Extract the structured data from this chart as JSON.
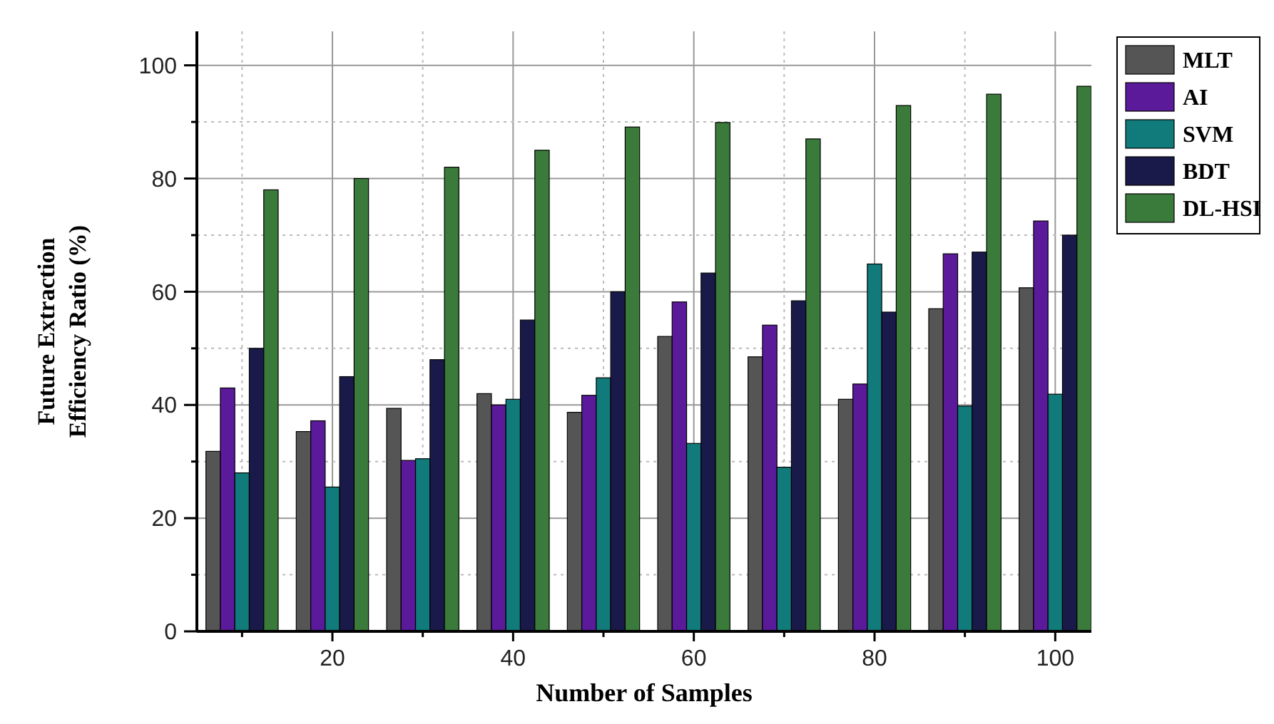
{
  "chart_data": {
    "type": "bar",
    "xlabel": "Number of Samples",
    "ylabel": "Future Extraction\nEfficiency Ratio (%)",
    "x": [
      10,
      20,
      30,
      40,
      50,
      60,
      70,
      80,
      90,
      100
    ],
    "series": [
      {
        "name": "MLT",
        "color": "#555555",
        "values": [
          31.8,
          35.3,
          39.4,
          42,
          38.7,
          52.1,
          48.5,
          41,
          57,
          60.7
        ]
      },
      {
        "name": "AI",
        "color": "#5a1a9a",
        "values": [
          43,
          37.2,
          30.2,
          40,
          41.7,
          58.2,
          54.1,
          43.7,
          66.7,
          72.5
        ]
      },
      {
        "name": "SVM",
        "color": "#117a7a",
        "values": [
          28,
          25.5,
          30.5,
          41,
          44.8,
          33.2,
          29,
          64.9,
          39.8,
          41.9
        ]
      },
      {
        "name": "BDT",
        "color": "#1a1a4a",
        "values": [
          50,
          45,
          48,
          55,
          60,
          63.3,
          58.4,
          56.4,
          67,
          70
        ]
      },
      {
        "name": "DL-HSI",
        "color": "#3a7a3a",
        "values": [
          78,
          80,
          82,
          85,
          89.1,
          89.9,
          87,
          92.9,
          94.9,
          96.3
        ]
      }
    ],
    "xlim": [
      5,
      104
    ],
    "xticks": [
      {
        "value": 10,
        "label": null
      },
      20,
      {
        "value": 30,
        "label": null
      },
      40,
      {
        "value": 50,
        "label": null
      },
      60,
      {
        "value": 70,
        "label": null
      },
      80,
      {
        "value": 90,
        "label": null
      },
      100
    ],
    "ylim": [
      0,
      106
    ],
    "yticks": [
      0,
      {
        "value": 10,
        "label": null
      },
      20,
      {
        "value": 30,
        "label": null
      },
      40,
      {
        "value": 50,
        "label": null
      },
      60,
      {
        "value": 70,
        "label": null
      },
      80,
      {
        "value": 90,
        "label": null
      },
      100
    ],
    "grid": true,
    "legend": "right"
  }
}
